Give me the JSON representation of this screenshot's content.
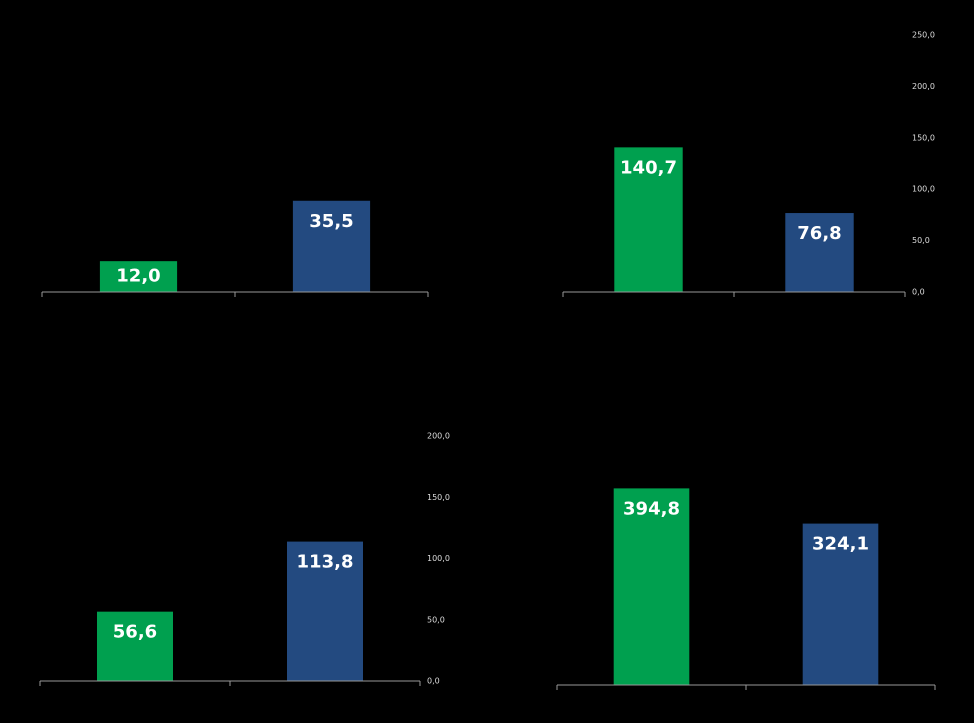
{
  "chart_data": [
    {
      "type": "bar",
      "categories": [
        null,
        null
      ],
      "values": [
        12.0,
        35.5
      ],
      "value_labels": [
        "12,0",
        "35,5"
      ],
      "colors": [
        "#00a04f",
        "#234a80"
      ],
      "ylim": [
        0,
        100
      ]
    },
    {
      "type": "bar",
      "categories": [
        null,
        null
      ],
      "values": [
        140.7,
        76.8
      ],
      "value_labels": [
        "140,7",
        "76,8"
      ],
      "colors": [
        "#00a04f",
        "#234a80"
      ],
      "ylim": [
        0,
        250
      ],
      "yticks": [
        {
          "value": 0,
          "label": "0,0"
        },
        {
          "value": 50,
          "label": "50,0"
        },
        {
          "value": 100,
          "label": "100,0"
        },
        {
          "value": 150,
          "label": "150,0"
        },
        {
          "value": 200,
          "label": "200,0"
        },
        {
          "value": 250,
          "label": "250,0"
        }
      ]
    },
    {
      "type": "bar",
      "categories": [
        null,
        null
      ],
      "values": [
        56.6,
        113.8
      ],
      "value_labels": [
        "56,6",
        "113,8"
      ],
      "colors": [
        "#00a04f",
        "#234a80"
      ],
      "ylim": [
        0,
        200
      ],
      "yticks": [
        {
          "value": 0,
          "label": "0,0"
        },
        {
          "value": 50,
          "label": "50,0"
        },
        {
          "value": 100,
          "label": "100,0"
        },
        {
          "value": 150,
          "label": "150,0"
        },
        {
          "value": 200,
          "label": "200,0"
        }
      ]
    },
    {
      "type": "bar",
      "categories": [
        null,
        null
      ],
      "values": [
        394.8,
        324.1
      ],
      "value_labels": [
        "394,8",
        "324,1"
      ],
      "colors": [
        "#00a04f",
        "#234a80"
      ],
      "ylim": [
        0,
        500
      ]
    }
  ]
}
